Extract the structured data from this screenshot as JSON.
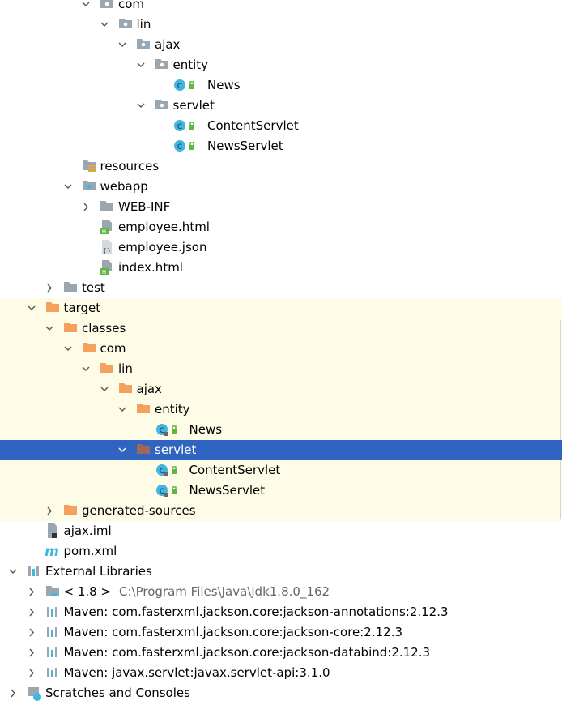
{
  "tree": {
    "rows": [
      {
        "label": "com"
      },
      {
        "label": "lin"
      },
      {
        "label": "ajax"
      },
      {
        "label": "entity"
      },
      {
        "label": "News"
      },
      {
        "label": "servlet"
      },
      {
        "label": "ContentServlet"
      },
      {
        "label": "NewsServlet"
      },
      {
        "label": "resources"
      },
      {
        "label": "webapp"
      },
      {
        "label": "WEB-INF"
      },
      {
        "label": "employee.html"
      },
      {
        "label": "employee.json"
      },
      {
        "label": "index.html"
      },
      {
        "label": "test"
      },
      {
        "label": "target"
      },
      {
        "label": "classes"
      },
      {
        "label": "com"
      },
      {
        "label": "lin"
      },
      {
        "label": "ajax"
      },
      {
        "label": "entity"
      },
      {
        "label": "News"
      },
      {
        "label": "servlet"
      },
      {
        "label": "ContentServlet"
      },
      {
        "label": "NewsServlet"
      },
      {
        "label": "generated-sources"
      },
      {
        "label": "ajax.iml"
      },
      {
        "label": "pom.xml"
      },
      {
        "label": "External Libraries"
      },
      {
        "label": "< 1.8 >",
        "detail": "C:\\Program Files\\Java\\jdk1.8.0_162"
      },
      {
        "label": "Maven: com.fasterxml.jackson.core:jackson-annotations:2.12.3"
      },
      {
        "label": "Maven: com.fasterxml.jackson.core:jackson-core:2.12.3"
      },
      {
        "label": "Maven: com.fasterxml.jackson.core:jackson-databind:2.12.3"
      },
      {
        "label": "Maven: javax.servlet:javax.servlet-api:3.1.0"
      },
      {
        "label": "Scratches and Consoles"
      }
    ]
  }
}
